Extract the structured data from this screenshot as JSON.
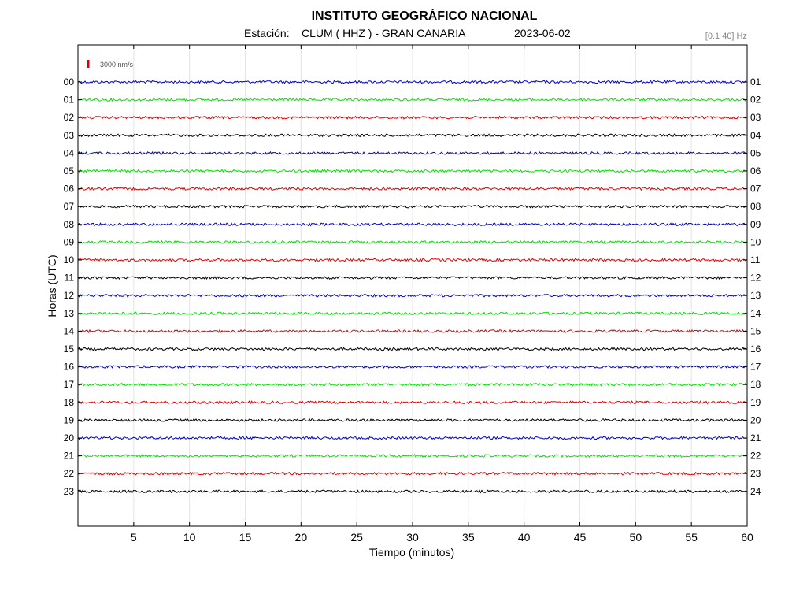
{
  "header": {
    "title": "INSTITUTO GEOGRÁFICO NACIONAL",
    "station_prefix": "Estación:",
    "station": "CLUM ( HHZ ) - GRAN CANARIA",
    "date": "2023-06-02",
    "filter": "[0.1 40] Hz"
  },
  "chart_data": {
    "type": "line",
    "title": "INSTITUTO GEOGRÁFICO NACIONAL",
    "xlabel": "Tiempo (minutos)",
    "ylabel": "Horas (UTC)",
    "xlim": [
      0,
      60
    ],
    "x_ticks": [
      5,
      10,
      15,
      20,
      25,
      30,
      35,
      40,
      45,
      50,
      55,
      60
    ],
    "left_tick_labels": [
      "00",
      "01",
      "02",
      "03",
      "04",
      "05",
      "06",
      "07",
      "08",
      "09",
      "10",
      "11",
      "12",
      "13",
      "14",
      "15",
      "16",
      "17",
      "18",
      "19",
      "20",
      "21",
      "22",
      "23"
    ],
    "right_tick_labels": [
      "01",
      "02",
      "03",
      "04",
      "05",
      "06",
      "07",
      "08",
      "09",
      "10",
      "11",
      "12",
      "13",
      "14",
      "15",
      "16",
      "17",
      "18",
      "19",
      "20",
      "21",
      "22",
      "23",
      "24"
    ],
    "trace_colors": [
      "#0000c8",
      "#00e000",
      "#e00000",
      "#000000"
    ],
    "scale_bar_label": "3000 nm/s",
    "scale_bar_color": "#e00000",
    "grid": true
  }
}
